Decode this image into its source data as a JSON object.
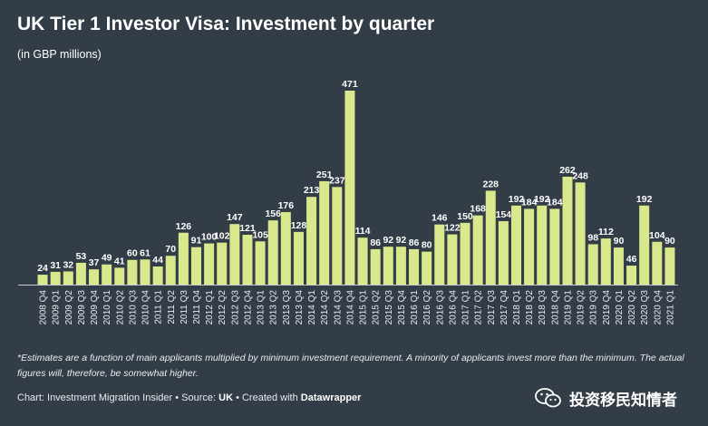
{
  "title": "UK Tier 1 Investor Visa: Investment by quarter",
  "subtitle": "(in GBP millions)",
  "footnote": "*Estimates are a function of main applicants multiplied by minimum investment requirement. A minority of applicants invest more than the minimum. The actual figures will, therefore, be somewhat higher.",
  "credit": {
    "prefix": "Chart: Investment Migration Insider • Source: ",
    "source": "UK",
    "middle": " • Created with ",
    "tool": "Datawrapper"
  },
  "watermark": {
    "text": "投资移民知情者",
    "icon": "wechat-icon"
  },
  "colors": {
    "background": "#333d47",
    "bar": "#d9e88c",
    "text": "#ffffff"
  },
  "chart_data": {
    "type": "bar",
    "title": "UK Tier 1 Investor Visa: Investment by quarter",
    "subtitle": "(in GBP millions)",
    "grid": false,
    "categories": [
      "2008 Q4",
      "2009 Q1",
      "2009 Q2",
      "2009 Q3",
      "2009 Q4",
      "2010 Q1",
      "2010 Q2",
      "2010 Q3",
      "2010 Q4",
      "2011 Q1",
      "2011 Q2",
      "2011 Q3",
      "2011 Q4",
      "2012 Q1",
      "2012 Q2",
      "2012 Q3",
      "2012 Q4",
      "2013 Q1",
      "2013 Q2",
      "2013 Q3",
      "2013 Q4",
      "2014 Q1",
      "2014 Q2",
      "2014 Q3",
      "2014 Q4",
      "2015 Q1",
      "2015 Q2",
      "2015 Q3",
      "2015 Q4",
      "2016 Q1",
      "2016 Q2",
      "2016 Q3",
      "2016 Q4",
      "2017 Q1",
      "2017 Q2",
      "2017 Q3",
      "2017 Q4",
      "2018 Q1",
      "2018 Q2",
      "2018 Q3",
      "2018 Q4",
      "2019 Q1",
      "2019 Q2",
      "2019 Q3",
      "2019 Q4",
      "2020 Q1",
      "2020 Q2",
      "2020 Q3",
      "2020 Q4",
      "2021 Q1"
    ],
    "values": [
      24,
      31,
      32,
      53,
      37,
      49,
      41,
      60,
      61,
      44,
      70,
      126,
      91,
      100,
      102,
      147,
      121,
      105,
      156,
      176,
      128,
      213,
      251,
      237,
      471,
      114,
      86,
      92,
      92,
      86,
      80,
      146,
      122,
      150,
      168,
      228,
      154,
      192,
      184,
      192,
      184,
      262,
      248,
      98,
      112,
      90,
      46,
      192,
      104,
      90
    ],
    "ylim": [
      0,
      471
    ]
  }
}
